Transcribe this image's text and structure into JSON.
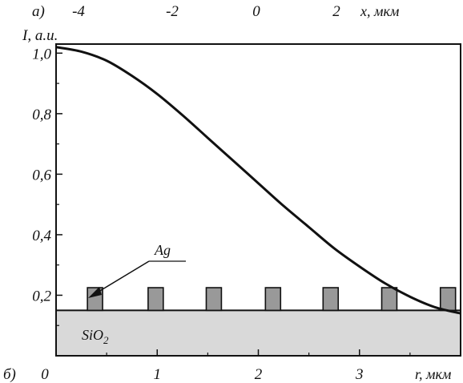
{
  "chart_data": {
    "type": "line",
    "panel_labels": {
      "top": "а)",
      "bottom": "б)"
    },
    "top_axis": {
      "ticks": [
        -4,
        -2,
        0,
        2
      ],
      "tick_labels": [
        "-4",
        "-2",
        "0",
        "2"
      ],
      "label": "x, мкм"
    },
    "x_axis": {
      "ticks": [
        0,
        1,
        2,
        3
      ],
      "tick_labels": [
        "0",
        "1",
        "2",
        "3"
      ],
      "label": "r, мкм",
      "range": [
        0,
        4.0
      ]
    },
    "y_axis": {
      "ticks": [
        0.2,
        0.4,
        0.6,
        0.8,
        1.0
      ],
      "tick_labels": [
        "0,2",
        "0,4",
        "0,6",
        "0,8",
        "1,0"
      ],
      "label": "I, a.u.",
      "range": [
        0.0,
        1.03
      ]
    },
    "series": [
      {
        "x": [
          0,
          0.25,
          0.5,
          0.75,
          1.0,
          1.25,
          1.5,
          1.75,
          2.0,
          2.25,
          2.5,
          2.75,
          3.0,
          3.25,
          3.5,
          3.75,
          4.0
        ],
        "y": [
          1.02,
          1.005,
          0.975,
          0.925,
          0.865,
          0.795,
          0.72,
          0.645,
          0.57,
          0.495,
          0.425,
          0.355,
          0.295,
          0.24,
          0.195,
          0.16,
          0.14
        ],
        "color": "#111111"
      }
    ],
    "structure": {
      "substrate_label": "SiO",
      "substrate_subscript": "2",
      "substrate_top": 0.15,
      "substrate_color": "#d9d9d9",
      "ridge_label": "Ag",
      "ridge_centers": [
        0.385,
        0.985,
        1.56,
        2.145,
        2.715,
        3.295,
        3.875
      ],
      "ridge_width": 0.15,
      "ridge_top": 0.225,
      "ridge_color": "#999999"
    },
    "grid": false
  }
}
